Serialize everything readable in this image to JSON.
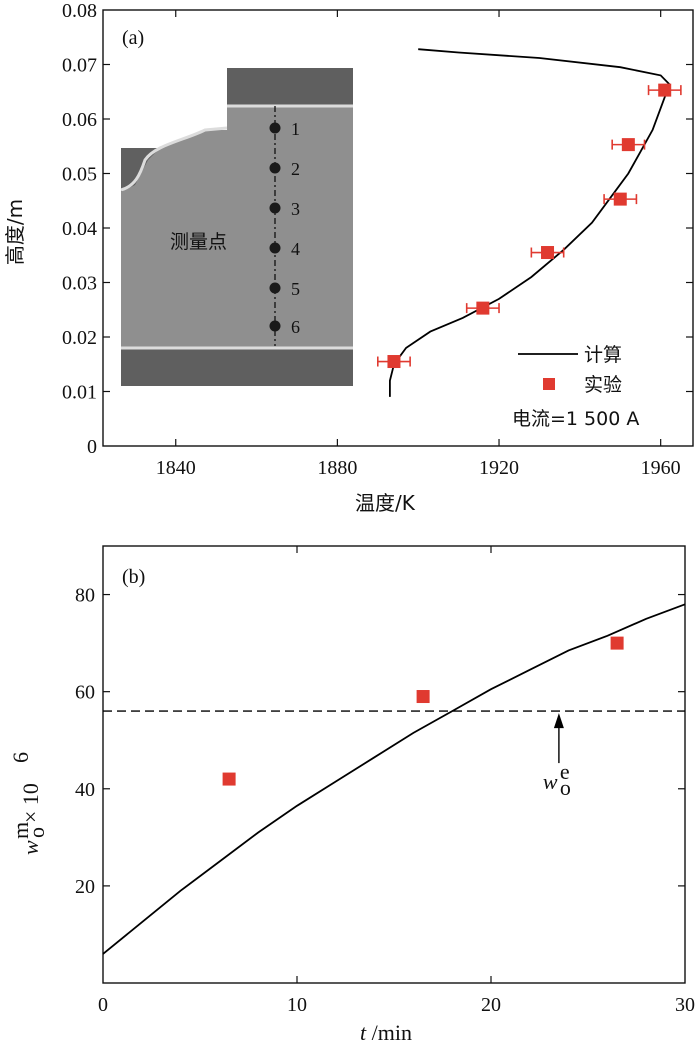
{
  "chart_data": [
    {
      "type": "scatter",
      "panel_label": "(a)",
      "xlabel": "温度/K",
      "ylabel": "高度/m",
      "xlim": [
        1822,
        1968
      ],
      "ylim": [
        0,
        0.08
      ],
      "xticks": [
        1840,
        1880,
        1920,
        1960
      ],
      "yticks": [
        0,
        0.01,
        0.02,
        0.03,
        0.04,
        0.05,
        0.06,
        0.07,
        0.08
      ],
      "xtick_labels": [
        "1840",
        "1880",
        "1920",
        "1960"
      ],
      "ytick_labels": [
        "0",
        "0.01",
        "0.02",
        "0.03",
        "0.04",
        "0.05",
        "0.06",
        "0.07",
        "0.08"
      ],
      "series": [
        {
          "name": "计算",
          "kind": "line",
          "color": "#000000",
          "points": [
            [
              1893,
              0.009
            ],
            [
              1893,
              0.012
            ],
            [
              1894,
              0.015
            ],
            [
              1897,
              0.018
            ],
            [
              1903,
              0.021
            ],
            [
              1911,
              0.0235
            ],
            [
              1920,
              0.027
            ],
            [
              1928,
              0.031
            ],
            [
              1936,
              0.036
            ],
            [
              1943,
              0.041
            ],
            [
              1948,
              0.046
            ],
            [
              1952,
              0.05
            ],
            [
              1955,
              0.054
            ],
            [
              1958,
              0.058
            ],
            [
              1960,
              0.062
            ],
            [
              1961.5,
              0.065
            ],
            [
              1962,
              0.0665
            ],
            [
              1960,
              0.068
            ],
            [
              1950,
              0.0695
            ],
            [
              1930,
              0.0712
            ],
            [
              1910,
              0.0722
            ],
            [
              1900,
              0.0728
            ]
          ]
        },
        {
          "name": "实验",
          "kind": "points",
          "color": "#e03a30",
          "points": [
            {
              "x": 1894,
              "y": 0.0155,
              "xerr": 4
            },
            {
              "x": 1916,
              "y": 0.0253,
              "xerr": 4
            },
            {
              "x": 1932,
              "y": 0.0355,
              "xerr": 4
            },
            {
              "x": 1950,
              "y": 0.0453,
              "xerr": 4
            },
            {
              "x": 1952,
              "y": 0.0553,
              "xerr": 4
            },
            {
              "x": 1961,
              "y": 0.0653,
              "xerr": 4
            }
          ]
        }
      ],
      "legend": {
        "position": "bottom-right",
        "line_label": "计算",
        "marker_label": "实验",
        "note": "电流=1 500 A"
      },
      "inset": {
        "label": "测量点",
        "points": [
          "1",
          "2",
          "3",
          "4",
          "5",
          "6"
        ],
        "colors": {
          "dark": "#5a5a5a",
          "mid": "#8c8c8c",
          "interface": "#d6d6d6"
        }
      }
    },
    {
      "type": "scatter",
      "panel_label": "(b)",
      "xlabel_var": "t",
      "xlabel_unit": "/min",
      "ylabel_w": "w",
      "ylabel_sup": "m",
      "ylabel_sub": "o",
      "ylabel_tail": "× 10",
      "ylabel_exp": "6",
      "xlim": [
        0,
        30
      ],
      "ylim": [
        0,
        90
      ],
      "xticks": [
        0,
        10,
        20,
        30
      ],
      "yticks": [
        20,
        40,
        60,
        80
      ],
      "xtick_labels": [
        "0",
        "10",
        "20",
        "30"
      ],
      "ytick_labels": [
        "20",
        "40",
        "60",
        "80"
      ],
      "series": [
        {
          "name": "",
          "kind": "line",
          "color": "#000000",
          "points": [
            [
              0,
              6
            ],
            [
              2,
              12.5
            ],
            [
              4,
              19
            ],
            [
              6,
              25
            ],
            [
              8,
              31
            ],
            [
              10,
              36.5
            ],
            [
              12,
              41.5
            ],
            [
              14,
              46.5
            ],
            [
              16,
              51.5
            ],
            [
              18,
              56
            ],
            [
              20,
              60.5
            ],
            [
              22,
              64.5
            ],
            [
              24,
              68.5
            ],
            [
              26,
              71.5
            ],
            [
              28,
              75
            ],
            [
              30,
              78
            ]
          ]
        },
        {
          "name": "",
          "kind": "points",
          "color": "#e03a30",
          "points": [
            {
              "x": 6.5,
              "y": 42
            },
            {
              "x": 16.5,
              "y": 59
            },
            {
              "x": 26.5,
              "y": 70
            }
          ]
        }
      ],
      "reference_line": {
        "y": 56,
        "style": "dashed"
      },
      "annotation": {
        "x": 23.5,
        "w": "w",
        "sup": "e",
        "sub": "o"
      }
    }
  ]
}
